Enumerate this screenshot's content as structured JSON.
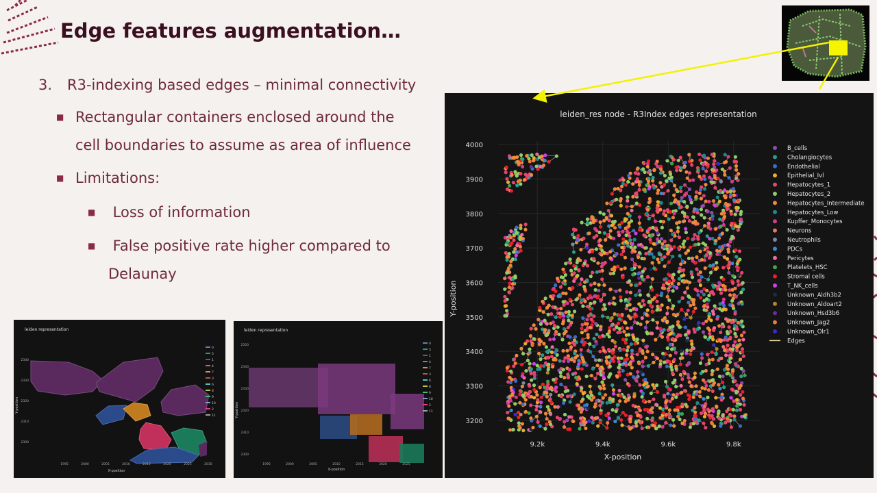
{
  "slide": {
    "title": "Edge features augmentation…",
    "numbered_item": {
      "number": "3.",
      "text": "R3-indexing based edges – minimal connectivity"
    },
    "bullets": [
      {
        "text_line1": "Rectangular containers enclosed around the",
        "text_line2": "cell boundaries to assume as area of influence"
      },
      {
        "text": "Limitations:"
      }
    ],
    "sub_bullets": [
      {
        "text": " Loss of information"
      },
      {
        "text_line1": " False positive rate higher compared to",
        "text_line2": "Delaunay"
      }
    ]
  },
  "colors": {
    "title": "#3a1020",
    "text": "#6e2a3a",
    "bullet": "#8a2b44",
    "background": "#f5f1ee",
    "panel": "#141414",
    "arrow": "#f2f200"
  },
  "chart_data": [
    {
      "type": "scatter",
      "title": "leiden_res node - R3Index edges representation",
      "xlabel": "X-position",
      "ylabel": "Y-position",
      "x_ticks": [
        "9.2k",
        "9.4k",
        "9.6k",
        "9.8k"
      ],
      "x_tick_values": [
        9200,
        9400,
        9600,
        9800
      ],
      "y_ticks": [
        "4000",
        "3900",
        "3800",
        "3700",
        "3600",
        "3500",
        "3400",
        "3300",
        "3200"
      ],
      "y_tick_values": [
        4000,
        3900,
        3800,
        3700,
        3600,
        3500,
        3400,
        3300,
        3200
      ],
      "xlim": [
        9080,
        9880
      ],
      "ylim": [
        3180,
        4010
      ],
      "legend": [
        {
          "name": "B_cells",
          "color": "#8e4bb0"
        },
        {
          "name": "Cholangiocytes",
          "color": "#2a9d8f"
        },
        {
          "name": "Endothelial",
          "color": "#3a6ec9"
        },
        {
          "name": "Epithelial_Ivl",
          "color": "#e8b02a"
        },
        {
          "name": "Hepatocytes_1",
          "color": "#e8446e"
        },
        {
          "name": "Hepatocytes_2",
          "color": "#8fcf6a"
        },
        {
          "name": "Hepatocytes_Intermediate",
          "color": "#f08a3c"
        },
        {
          "name": "Hepatocytes_Low",
          "color": "#1d8a8a"
        },
        {
          "name": "Kupffer_Monocytes",
          "color": "#d63a8a"
        },
        {
          "name": "Neurons",
          "color": "#e07a5f"
        },
        {
          "name": "Neutrophils",
          "color": "#7a8aa0"
        },
        {
          "name": "PDCs",
          "color": "#3a8ad0"
        },
        {
          "name": "Pericytes",
          "color": "#f06aa0"
        },
        {
          "name": "Platelets_HSC",
          "color": "#3aa84a"
        },
        {
          "name": "Stromal cells",
          "color": "#e8202a"
        },
        {
          "name": "T_NK_cells",
          "color": "#d040e8"
        },
        {
          "name": "Unknown_Aldh3b2",
          "color": "#1a2a4a"
        },
        {
          "name": "Unknown_Aldoart2",
          "color": "#b08a20"
        },
        {
          "name": "Unknown_Hsd3b6",
          "color": "#6a2aa0"
        },
        {
          "name": "Unknown_Jag2",
          "color": "#f07a3a"
        },
        {
          "name": "Unknown_Olr1",
          "color": "#3a2ad0"
        },
        {
          "name": "Edges",
          "color": "#f5e8a0"
        }
      ],
      "regions": [
        {
          "name": "upper-left triangle",
          "poly": [
            [
              9100,
              3970
            ],
            [
              9270,
              3975
            ],
            [
              9105,
              3850
            ]
          ]
        },
        {
          "name": "left wedge",
          "poly": [
            [
              9100,
              3750
            ],
            [
              9170,
              3780
            ],
            [
              9100,
              3460
            ]
          ]
        },
        {
          "name": "main region",
          "poly": [
            [
              9310,
              3760
            ],
            [
              9400,
              3810
            ],
            [
              9450,
              3900
            ],
            [
              9520,
              3950
            ],
            [
              9600,
              3970
            ],
            [
              9680,
              3975
            ],
            [
              9810,
              3970
            ],
            [
              9820,
              3900
            ],
            [
              9830,
              3600
            ],
            [
              9840,
              3180
            ],
            [
              9110,
              3170
            ],
            [
              9100,
              3350
            ],
            [
              9160,
              3420
            ],
            [
              9200,
              3520
            ],
            [
              9250,
              3600
            ],
            [
              9300,
              3680
            ]
          ]
        }
      ]
    },
    {
      "type": "area",
      "title": "leiden representation",
      "xlabel": "X-position",
      "ylabel": "Y-position",
      "x_ticks": [
        "1995",
        "2000",
        "2005",
        "2010",
        "2015",
        "2020",
        "2025",
        "2030"
      ],
      "y_ticks": [
        "2340",
        "2330",
        "2320",
        "2310",
        "2300"
      ],
      "legend": [
        "0",
        "5",
        "1",
        "4",
        "7",
        "3",
        "6",
        "8",
        "9",
        "10",
        "2",
        "11"
      ]
    },
    {
      "type": "area",
      "title": "leiden representation",
      "xlabel": "X-position",
      "ylabel": "Y-position",
      "x_ticks": [
        "1995",
        "2000",
        "2005",
        "2010",
        "2015",
        "2020",
        "2025"
      ],
      "y_ticks": [
        "2350",
        "2340",
        "2330",
        "2320",
        "2310",
        "2300"
      ],
      "legend": [
        "0",
        "5",
        "1",
        "4",
        "7",
        "3",
        "6",
        "8",
        "9",
        "10",
        "2",
        "11"
      ]
    }
  ]
}
